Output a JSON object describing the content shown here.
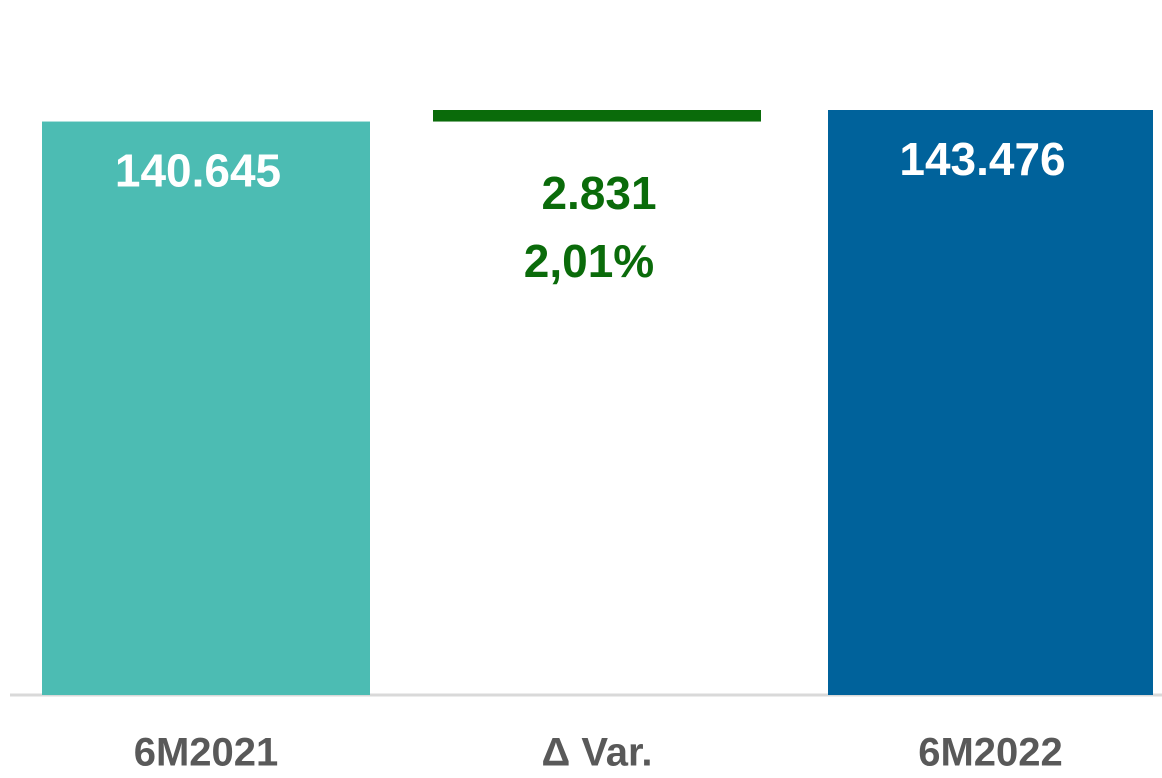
{
  "chart_data": {
    "type": "waterfall",
    "categories": [
      "6M2021",
      "Δ Var.",
      "6M2022"
    ],
    "values": [
      140645,
      2831,
      143476
    ],
    "value_labels": [
      "140.645",
      "2.831",
      "143.476"
    ],
    "kinds": [
      "total",
      "change",
      "total"
    ],
    "colors": [
      "#4cbcb3",
      "#0a6b0a",
      "#00629b"
    ],
    "change_percent": 2.01,
    "change_percent_label": "2,01%"
  }
}
